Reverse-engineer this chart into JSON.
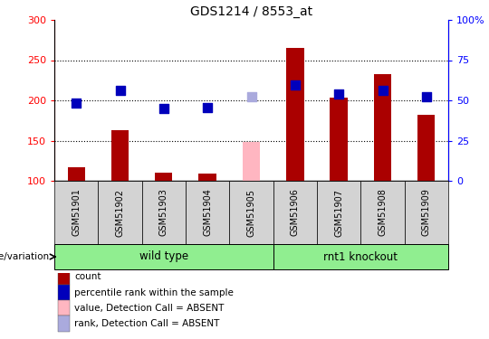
{
  "title": "GDS1214 / 8553_at",
  "samples": [
    "GSM51901",
    "GSM51902",
    "GSM51903",
    "GSM51904",
    "GSM51905",
    "GSM51906",
    "GSM51907",
    "GSM51908",
    "GSM51909"
  ],
  "red_bar_values": [
    117,
    163,
    110,
    109,
    148,
    265,
    203,
    233,
    182
  ],
  "red_bar_absent": [
    false,
    false,
    false,
    false,
    true,
    false,
    false,
    false,
    false
  ],
  "blue_dot_values": [
    197,
    212,
    190,
    191,
    204,
    219,
    208,
    212,
    204
  ],
  "blue_dot_absent": [
    false,
    false,
    false,
    false,
    true,
    false,
    false,
    false,
    false
  ],
  "ylim_left": [
    100,
    300
  ],
  "ylim_right": [
    0,
    100
  ],
  "yticks_left": [
    100,
    150,
    200,
    250,
    300
  ],
  "yticks_right": [
    0,
    25,
    50,
    75,
    100
  ],
  "yticklabels_right": [
    "0",
    "25",
    "50",
    "75",
    "100%"
  ],
  "group_label": "genotype/variation",
  "group_boundaries": [
    [
      0,
      4,
      "wild type"
    ],
    [
      5,
      8,
      "rnt1 knockout"
    ]
  ],
  "bar_color": "#AA0000",
  "bar_absent_color": "#FFB6C1",
  "dot_color": "#0000BB",
  "dot_absent_color": "#AAAADD",
  "bar_width": 0.4,
  "dot_size": 55,
  "legend_items": [
    {
      "label": "count",
      "color": "#AA0000"
    },
    {
      "label": "percentile rank within the sample",
      "color": "#0000BB"
    },
    {
      "label": "value, Detection Call = ABSENT",
      "color": "#FFB6C1"
    },
    {
      "label": "rank, Detection Call = ABSENT",
      "color": "#AAAADD"
    }
  ],
  "background_color": "#ffffff",
  "sample_bg_color": "#d3d3d3",
  "group_bg_color": "#90EE90"
}
